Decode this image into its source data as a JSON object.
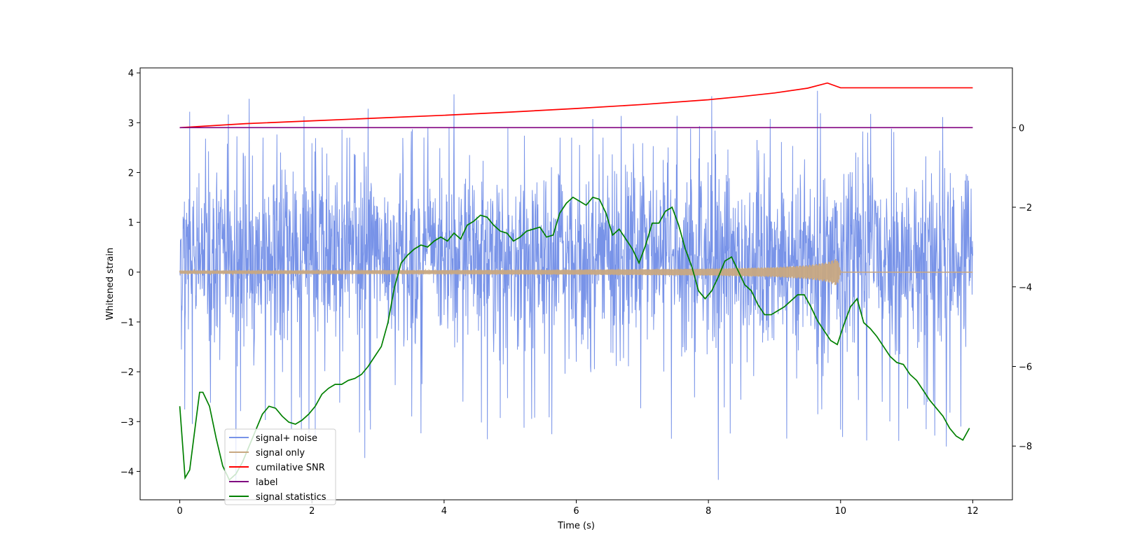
{
  "chart_data": {
    "type": "line",
    "title": "",
    "xlabel": "Time (s)",
    "ylabel": "Whitened strain",
    "y2label": "",
    "xlim": [
      -0.6,
      12.6
    ],
    "ylim": [
      -4.57,
      4.1
    ],
    "y2lim": [
      -9.35,
      1.5
    ],
    "x_ticks": [
      0,
      2,
      4,
      6,
      8,
      10,
      12
    ],
    "y_ticks": [
      4,
      3,
      2,
      1,
      0,
      -1,
      -2,
      -3,
      -4
    ],
    "y2_ticks": [
      0,
      -2,
      -4,
      -6,
      -8
    ],
    "legend_position": "lower-left",
    "series": [
      {
        "name": "signal+ noise",
        "axis": "left",
        "color": "#7893e8",
        "description_samples": {
          "x_range": [
            0,
            12
          ],
          "typical_band": [
            -1.7,
            2.3
          ],
          "peak_values": [
            [
              0.15,
              3.22
            ],
            [
              1.05,
              3.48
            ],
            [
              2.85,
              3.28
            ],
            [
              4.15,
              3.57
            ],
            [
              8.05,
              3.53
            ],
            [
              9.65,
              3.64
            ],
            [
              0.85,
              -4.2
            ],
            [
              2.8,
              -3.73
            ],
            [
              8.15,
              -4.17
            ],
            [
              11.6,
              -3.5
            ]
          ]
        }
      },
      {
        "name": "signal only",
        "axis": "left",
        "color": "#c8a882",
        "envelope": {
          "x": [
            0,
            2,
            4,
            6,
            8,
            9,
            9.5,
            9.8,
            9.95,
            10.0,
            12
          ],
          "amp": [
            0.03,
            0.035,
            0.04,
            0.05,
            0.07,
            0.1,
            0.14,
            0.2,
            0.28,
            0.03,
            0.0
          ]
        }
      },
      {
        "name": "cumilative SNR",
        "axis": "right",
        "color": "#ff0000",
        "x": [
          0,
          1,
          2,
          3,
          4,
          5,
          6,
          7,
          8,
          8.5,
          9,
          9.5,
          9.8,
          10.0,
          12
        ],
        "values": [
          0.0,
          0.1,
          0.17,
          0.24,
          0.31,
          0.39,
          0.48,
          0.58,
          0.7,
          0.78,
          0.87,
          0.99,
          1.12,
          1.0,
          1.0
        ]
      },
      {
        "name": "label",
        "axis": "right",
        "color": "#800080",
        "x": [
          0,
          12
        ],
        "values": [
          0,
          0
        ]
      },
      {
        "name": "signal statistics",
        "axis": "right",
        "color": "#008000",
        "x": [
          0,
          0.08,
          0.15,
          0.25,
          0.3,
          0.35,
          0.45,
          0.55,
          0.65,
          0.75,
          0.85,
          0.95,
          1.05,
          1.15,
          1.25,
          1.35,
          1.45,
          1.55,
          1.65,
          1.75,
          1.85,
          1.95,
          2.05,
          2.15,
          2.25,
          2.35,
          2.45,
          2.55,
          2.65,
          2.75,
          2.85,
          2.95,
          3.05,
          3.15,
          3.25,
          3.35,
          3.45,
          3.55,
          3.65,
          3.75,
          3.85,
          3.95,
          4.05,
          4.15,
          4.25,
          4.35,
          4.45,
          4.55,
          4.65,
          4.75,
          4.85,
          4.95,
          5.05,
          5.15,
          5.25,
          5.35,
          5.45,
          5.55,
          5.65,
          5.75,
          5.85,
          5.95,
          6.05,
          6.15,
          6.25,
          6.35,
          6.45,
          6.55,
          6.65,
          6.75,
          6.85,
          6.95,
          7.05,
          7.15,
          7.25,
          7.35,
          7.45,
          7.55,
          7.65,
          7.75,
          7.85,
          7.95,
          8.05,
          8.15,
          8.25,
          8.35,
          8.45,
          8.55,
          8.65,
          8.75,
          8.85,
          8.95,
          9.05,
          9.15,
          9.25,
          9.35,
          9.45,
          9.55,
          9.65,
          9.75,
          9.85,
          9.95,
          10.05,
          10.15,
          10.25,
          10.35,
          10.45,
          10.55,
          10.65,
          10.75,
          10.85,
          10.95,
          11.05,
          11.15,
          11.25,
          11.35,
          11.45,
          11.55,
          11.65,
          11.75,
          11.85,
          11.95
        ],
        "values": [
          -7.0,
          -8.8,
          -8.6,
          -7.3,
          -6.65,
          -6.65,
          -7.0,
          -7.8,
          -8.5,
          -8.85,
          -8.7,
          -8.4,
          -8.0,
          -7.6,
          -7.2,
          -7.0,
          -7.05,
          -7.25,
          -7.4,
          -7.45,
          -7.35,
          -7.2,
          -7.0,
          -6.7,
          -6.55,
          -6.45,
          -6.45,
          -6.35,
          -6.3,
          -6.2,
          -6.0,
          -5.75,
          -5.5,
          -4.9,
          -4.0,
          -3.4,
          -3.2,
          -3.05,
          -2.95,
          -3.0,
          -2.85,
          -2.75,
          -2.85,
          -2.65,
          -2.8,
          -2.45,
          -2.35,
          -2.2,
          -2.25,
          -2.45,
          -2.6,
          -2.65,
          -2.85,
          -2.75,
          -2.6,
          -2.55,
          -2.5,
          -2.75,
          -2.7,
          -2.15,
          -1.9,
          -1.75,
          -1.85,
          -1.95,
          -1.75,
          -1.8,
          -2.15,
          -2.7,
          -2.55,
          -2.8,
          -3.05,
          -3.4,
          -2.95,
          -2.4,
          -2.4,
          -2.1,
          -2.0,
          -2.45,
          -3.05,
          -3.5,
          -4.1,
          -4.3,
          -4.1,
          -3.75,
          -3.35,
          -3.25,
          -3.6,
          -3.95,
          -4.1,
          -4.45,
          -4.7,
          -4.7,
          -4.6,
          -4.5,
          -4.35,
          -4.2,
          -4.2,
          -4.5,
          -4.85,
          -5.1,
          -5.35,
          -5.45,
          -4.95,
          -4.5,
          -4.3,
          -4.9,
          -5.05,
          -5.25,
          -5.5,
          -5.75,
          -5.9,
          -5.95,
          -6.2,
          -6.35,
          -6.6,
          -6.85,
          -7.05,
          -7.25,
          -7.55,
          -7.75,
          -7.85,
          -7.55
        ]
      }
    ]
  }
}
